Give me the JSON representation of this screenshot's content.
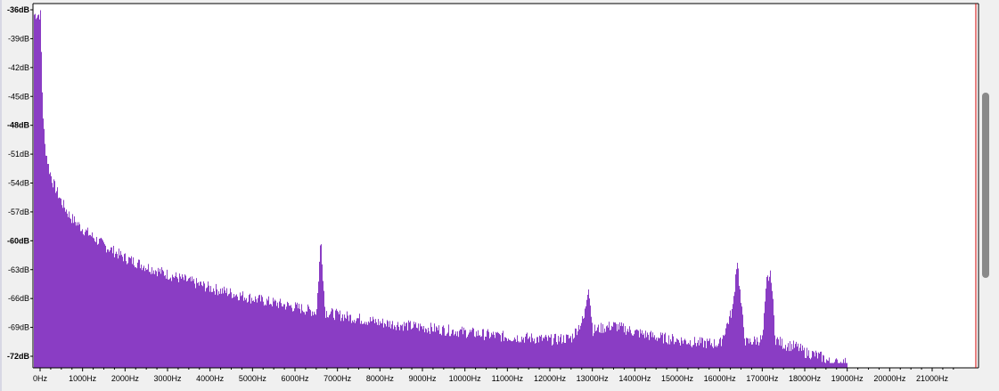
{
  "colors": {
    "spectrum_fill": "#8a3dc4",
    "plot_background": "#ffffff",
    "axis": "#000000",
    "end_marker": "#cc0000",
    "scrollbar_thumb": "#8a8a8a"
  },
  "chart_data": {
    "type": "area",
    "title": "",
    "xlabel": "",
    "ylabel": "",
    "x_unit": "Hz",
    "y_unit": "dB",
    "xlim": [
      0,
      21600
    ],
    "ylim": [
      -72.7,
      -36
    ],
    "grid": false,
    "legend": "none",
    "y_ticks": [
      "-36dB",
      "-39dB",
      "-42dB",
      "-45dB",
      "-48dB",
      "-51dB",
      "-54dB",
      "-57dB",
      "-60dB",
      "-63dB",
      "-66dB",
      "-69dB",
      "-72dB"
    ],
    "y_tick_values": [
      -36,
      -39,
      -42,
      -45,
      -48,
      -51,
      -54,
      -57,
      -60,
      -63,
      -66,
      -69,
      -72
    ],
    "x_ticks": [
      "0Hz",
      "1000Hz",
      "2000Hz",
      "3000Hz",
      "4000Hz",
      "5000Hz",
      "6000Hz",
      "7000Hz",
      "8000Hz",
      "9000Hz",
      "10000Hz",
      "11000Hz",
      "12000Hz",
      "13000Hz",
      "14000Hz",
      "15000Hz",
      "16000Hz",
      "17000Hz",
      "18000Hz",
      "19000Hz",
      "20000Hz",
      "21000Hz"
    ],
    "x_tick_values": [
      0,
      1000,
      2000,
      3000,
      4000,
      5000,
      6000,
      7000,
      8000,
      9000,
      10000,
      11000,
      12000,
      13000,
      14000,
      15000,
      16000,
      17000,
      18000,
      19000,
      20000,
      21000
    ],
    "series": [
      {
        "x": [
          0,
          50,
          100,
          200,
          300,
          500,
          700,
          1000,
          1500,
          2000,
          2500,
          3000,
          3500,
          4000,
          5000,
          6000,
          6500,
          6600,
          6700,
          7000,
          8000,
          9000,
          10000,
          11000,
          11500,
          12000,
          12500,
          12800,
          12900,
          13000,
          13500,
          14000,
          14500,
          15000,
          15500,
          16000,
          16300,
          16400,
          16500,
          16600,
          17000,
          17100,
          17200,
          17300,
          17500,
          17800,
          18000,
          18200,
          18400,
          18500,
          18600,
          18700,
          18800,
          18900,
          19000
        ],
        "y": [
          -36.5,
          -46,
          -50,
          -52.5,
          -54,
          -56,
          -57.5,
          -58.8,
          -60.5,
          -61.8,
          -62.7,
          -63.5,
          -64.2,
          -64.9,
          -66,
          -66.9,
          -67.4,
          -59.7,
          -67.4,
          -67.7,
          -68.5,
          -69,
          -69.5,
          -70,
          -70.1,
          -70.3,
          -70.1,
          -68,
          -64.5,
          -69.3,
          -68.8,
          -69.5,
          -70,
          -70.3,
          -70.6,
          -70.7,
          -67,
          -61.7,
          -67,
          -70.6,
          -70.2,
          -64,
          -63.6,
          -70.2,
          -70.8,
          -71,
          -71.6,
          -71.8,
          -72.1,
          -72.4,
          -72.7,
          -72.7,
          -72.7,
          -72.7,
          -72.7
        ]
      }
    ]
  }
}
